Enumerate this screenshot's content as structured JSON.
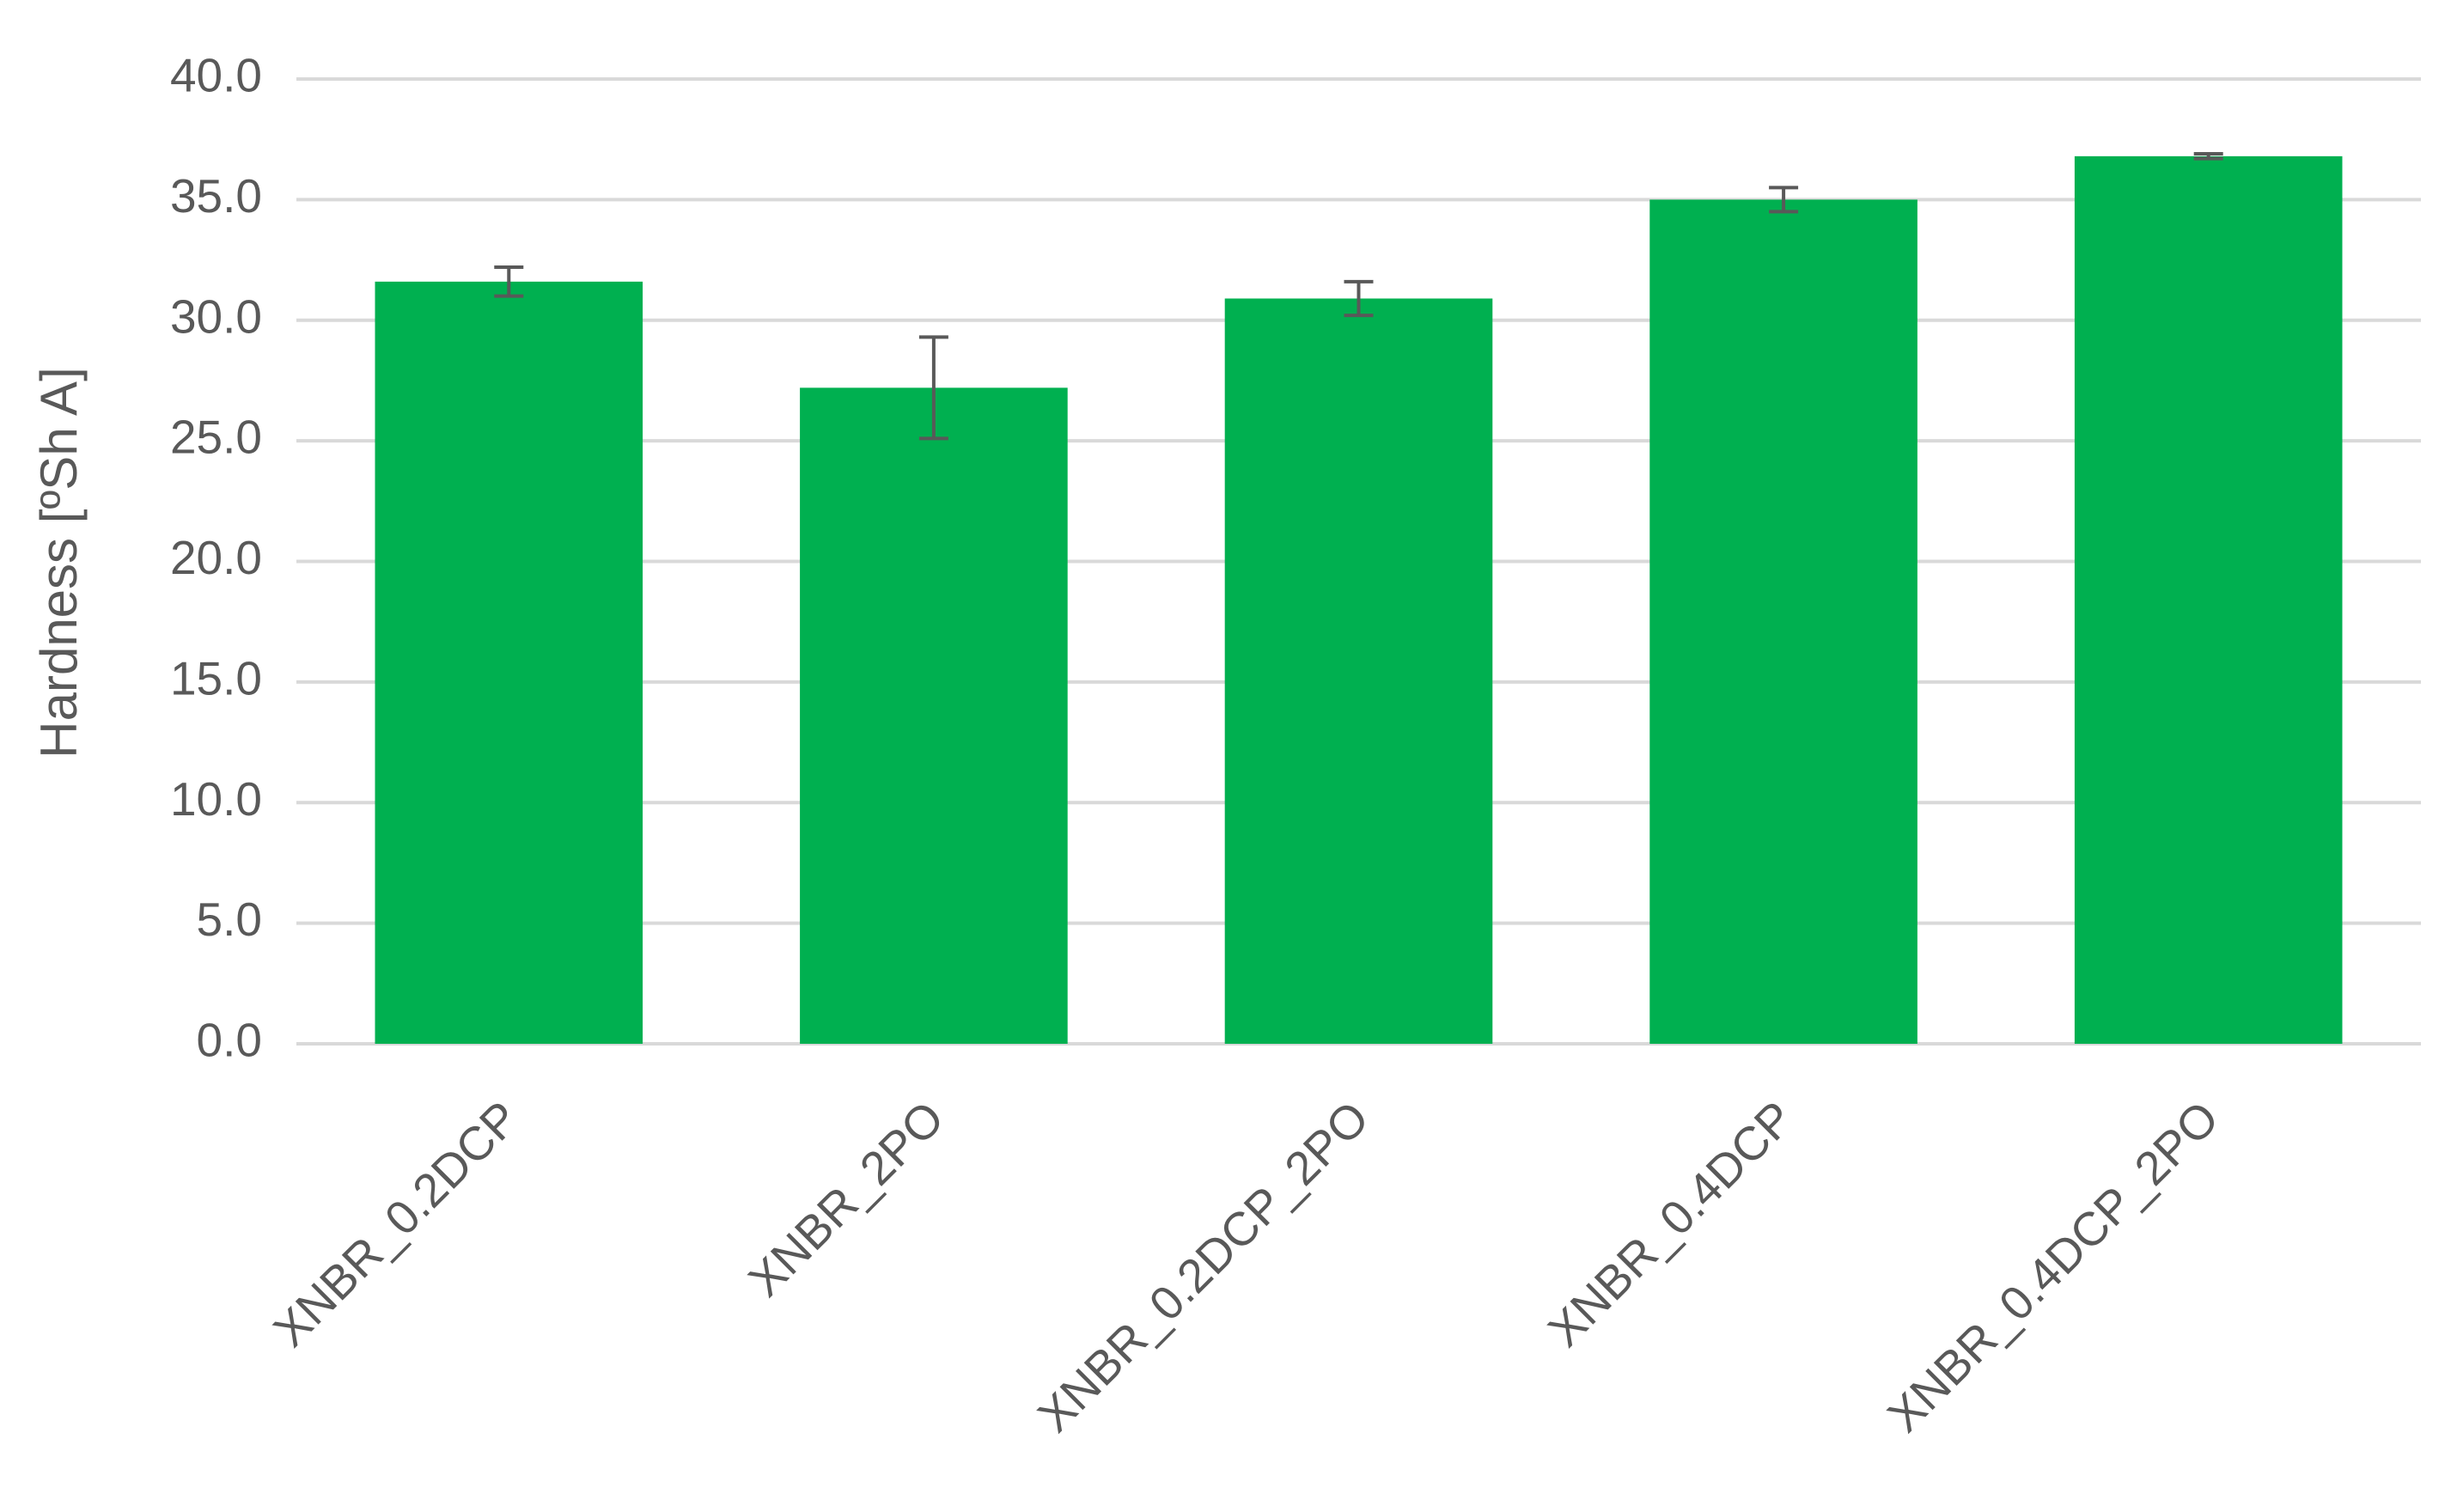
{
  "chart_data": {
    "type": "bar",
    "y_axis_label": "Hardness [ºSh A]",
    "categories": [
      "XNBR_0.2DCP",
      "XNBR_2PO",
      "XNBR_0.2DCP_2PO",
      "XNBR_0.4DCP",
      "XNBR_0.4DCP_2PO"
    ],
    "values": [
      31.6,
      27.2,
      30.9,
      35.0,
      36.8
    ],
    "errors": [
      0.6,
      2.1,
      0.7,
      0.5,
      0.1
    ],
    "color": "#00b050",
    "error_color": "#595959",
    "ylim": [
      0,
      40
    ],
    "yticks": [
      {
        "value": 0,
        "label": "0.0"
      },
      {
        "value": 5,
        "label": "5.0"
      },
      {
        "value": 10,
        "label": "10.0"
      },
      {
        "value": 15,
        "label": "15.0"
      },
      {
        "value": 20,
        "label": "20.0"
      },
      {
        "value": 25,
        "label": "25.0"
      },
      {
        "value": 30,
        "label": "30.0"
      },
      {
        "value": 35,
        "label": "35.0"
      },
      {
        "value": 40,
        "label": "40.0"
      }
    ],
    "grid": true
  }
}
